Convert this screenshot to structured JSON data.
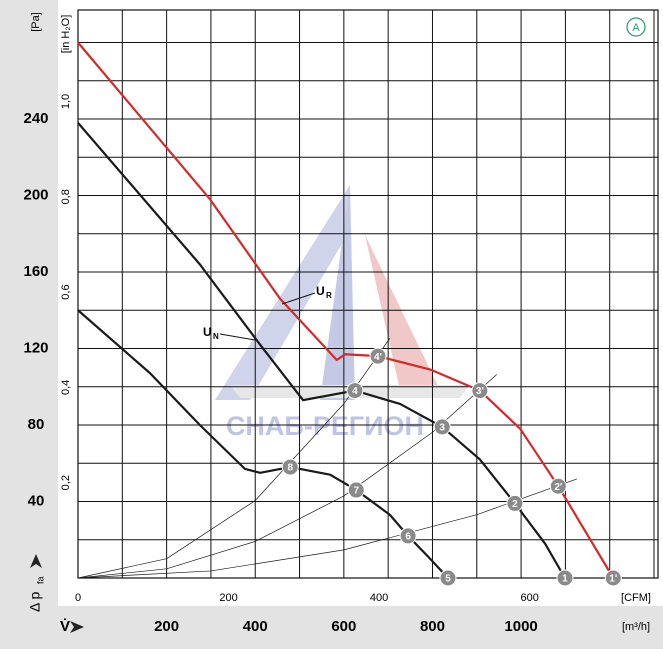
{
  "chart_data": {
    "type": "line",
    "badge": "A",
    "watermark": "СНАБ-РЕГИОН",
    "ylabel": "[Pa]",
    "y2label": "[in H₂O]",
    "xlabel": "[m³/h]",
    "x2label": "[CFM]",
    "ylabel_main": "Δ p",
    "ylabel_sub": "fa",
    "xlabel_symbol": "V̇",
    "xlim": [
      0,
      1309
    ],
    "ylim": [
      0,
      297
    ],
    "xgrid": [
      0,
      100,
      200,
      300,
      400,
      500,
      600,
      700,
      800,
      900,
      1000,
      1100,
      1200,
      1300
    ],
    "ygrid": [
      0,
      20,
      40,
      60,
      80,
      100,
      120,
      140,
      160,
      180,
      200,
      220,
      240,
      260,
      280
    ],
    "xticks": [
      200,
      400,
      600,
      800,
      1000
    ],
    "yticks": [
      40,
      80,
      120,
      160,
      200,
      240
    ],
    "x2lim": [
      0,
      770.5
    ],
    "x2ticks": [
      0,
      200,
      400,
      600
    ],
    "y2lim": [
      0,
      1.192
    ],
    "y2ticks": [
      {
        "value": 0.2,
        "label": "0,2"
      },
      {
        "value": 0.4,
        "label": "0,4"
      },
      {
        "value": 0.6,
        "label": "0,6"
      },
      {
        "value": 0.8,
        "label": "0,8"
      },
      {
        "value": 1.0,
        "label": "1,0"
      }
    ],
    "series": [
      {
        "name_main": "U",
        "name_sub": "R",
        "color": "#d42a2a",
        "width": 2.2,
        "x": [
          0,
          298,
          456,
          584,
          603,
          677,
          795,
          907,
          998,
          1084,
          1208
        ],
        "values": [
          280,
          198,
          146,
          114,
          117,
          116,
          109,
          98,
          78,
          48,
          0
        ]
      },
      {
        "name_main": "U",
        "name_sub": "N",
        "color": "#1a1a1a",
        "width": 2.2,
        "x": [
          0,
          275,
          411,
          508,
          625,
          727,
          822,
          907,
          986,
          1054,
          1099
        ],
        "values": [
          238,
          164,
          122,
          93,
          98,
          91,
          79,
          62,
          39,
          18,
          0
        ]
      },
      {
        "color": "#1a1a1a",
        "width": 2.2,
        "x": [
          0,
          163,
          275,
          377,
          411,
          479,
          569,
          628,
          704,
          745,
          795,
          835
        ],
        "values": [
          140,
          107,
          80,
          57,
          55,
          58,
          54,
          46,
          33,
          22,
          10,
          0
        ]
      },
      {
        "color": "#1a1a1a",
        "width": 0.7,
        "x": [
          0,
          200,
          400,
          600,
          704
        ],
        "values": [
          0,
          10.1,
          40.5,
          91.1,
          125.4
        ]
      },
      {
        "color": "#1a1a1a",
        "width": 0.7,
        "x": [
          0,
          200,
          400,
          600,
          800,
          945
        ],
        "values": [
          0,
          4.8,
          19.1,
          42.9,
          76.2,
          106.4
        ]
      },
      {
        "color": "#1a1a1a",
        "width": 0.7,
        "x": [
          0,
          300,
          600,
          900,
          1126
        ],
        "values": [
          0,
          3.7,
          14.7,
          33.1,
          51.8
        ]
      }
    ],
    "points": [
      {
        "label": "1",
        "x": 1099,
        "y": 0
      },
      {
        "label": "2",
        "x": 986,
        "y": 39
      },
      {
        "label": "3",
        "x": 822,
        "y": 79
      },
      {
        "label": "4",
        "x": 625,
        "y": 98
      },
      {
        "label": "5",
        "x": 835,
        "y": 0
      },
      {
        "label": "6",
        "x": 745,
        "y": 22
      },
      {
        "label": "7",
        "x": 628,
        "y": 46
      },
      {
        "label": "8",
        "x": 479,
        "y": 58
      },
      {
        "label": "1'",
        "x": 1208,
        "y": 0
      },
      {
        "label": "2'",
        "x": 1084,
        "y": 48
      },
      {
        "label": "3'",
        "x": 907,
        "y": 98
      },
      {
        "label": "4'",
        "x": 677,
        "y": 116
      }
    ]
  }
}
